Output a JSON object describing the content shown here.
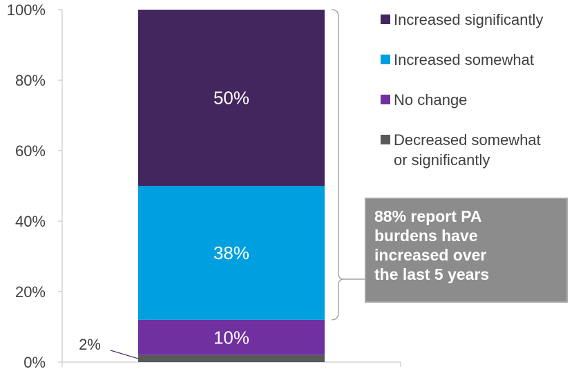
{
  "chart_data": {
    "type": "bar",
    "stacked": true,
    "categories": [
      ""
    ],
    "yticks": [
      "0%",
      "20%",
      "40%",
      "60%",
      "80%",
      "100%"
    ],
    "ylim": [
      0,
      100
    ],
    "series": [
      {
        "name": "Decreased somewhat\nor significantly",
        "values": [
          2
        ],
        "label": "2%",
        "color": "#595959"
      },
      {
        "name": "No change",
        "values": [
          10
        ],
        "label": "10%",
        "color": "#7030a0"
      },
      {
        "name": "Increased somewhat",
        "values": [
          38
        ],
        "label": "38%",
        "color": "#009fdf"
      },
      {
        "name": "Increased significantly",
        "values": [
          50
        ],
        "label": "50%",
        "color": "#44265f"
      }
    ],
    "legend_position": "right",
    "annotation": "88% report PA\nburdens have\nincreased over\nthe last 5 years"
  },
  "legend_order": [
    "Increased significantly",
    "Increased somewhat",
    "No change",
    "Decreased somewhat\nor significantly"
  ]
}
